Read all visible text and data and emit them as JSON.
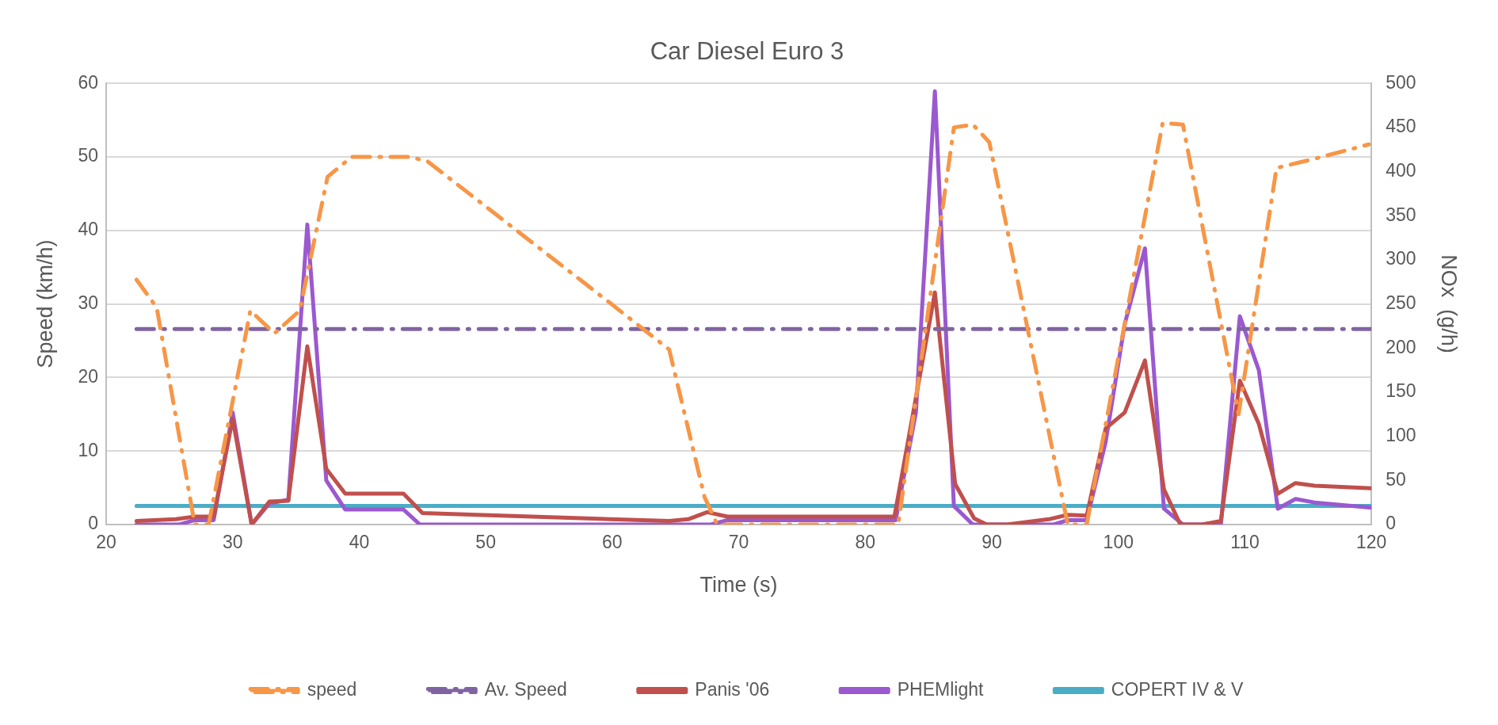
{
  "chart_data": {
    "type": "line",
    "title": "Car Diesel Euro 3",
    "xlabel": "Time (s)",
    "ylabel": "Speed (km/h)",
    "y2label": "NOx  (g/h)",
    "xlim": [
      20,
      120
    ],
    "xticks": [
      20,
      30,
      40,
      50,
      60,
      70,
      80,
      90,
      100,
      110,
      120
    ],
    "ylim": [
      0,
      60
    ],
    "yticks": [
      0,
      10,
      20,
      30,
      40,
      50,
      60
    ],
    "y2lim": [
      0,
      500
    ],
    "y2ticks": [
      0,
      50,
      100,
      150,
      200,
      250,
      300,
      350,
      400,
      450,
      500
    ],
    "grid": "y",
    "legend": "bottom",
    "marker": "none",
    "series": [
      {
        "name": "speed",
        "color": "#f79646",
        "line_style": "dashed",
        "x": [
          22.4,
          24.0,
          27.0,
          28.1,
          31.4,
          33.3,
          35.3,
          37.5,
          39.4,
          44.0,
          45.4,
          59.7,
          64.5,
          67.3,
          68.3,
          82.6,
          87.0,
          88.5,
          89.8,
          96.0,
          97.5,
          103.5,
          105.1,
          109.5,
          112.5,
          115.4,
          119.8
        ],
        "values": [
          33.3,
          29.5,
          0,
          0,
          29.1,
          26.0,
          29.1,
          47.3,
          50,
          50,
          49.4,
          30.3,
          23.8,
          3.7,
          0,
          0,
          54.0,
          54.4,
          52.0,
          0,
          0,
          54.6,
          54.4,
          15,
          48.5,
          49.7,
          51.7
        ]
      },
      {
        "name": "Av. Speed",
        "color": "#8064a2",
        "line_style": "dashed",
        "x": [
          22.4,
          120
        ],
        "values": [
          26.6,
          26.6
        ]
      },
      {
        "name": "Panis '06",
        "color": "#c0504d",
        "axis": "y2",
        "line_style": "solid",
        "x": [
          22.4,
          25.5,
          27.0,
          28.5,
          30.0,
          31.5,
          32.9,
          34.4,
          35.9,
          37.4,
          38.9,
          43.5,
          45.0,
          64.5,
          66.0,
          67.5,
          69.1,
          82.3,
          85.5,
          87.1,
          88.6,
          89.6,
          91.2,
          94.5,
          96.0,
          97.5,
          99.0,
          100.5,
          102.1,
          103.6,
          104.9,
          106.6,
          108.1,
          109.6,
          111.1,
          112.6,
          114.0,
          115.5,
          120
        ],
        "values": [
          4,
          6,
          9,
          9,
          120,
          0,
          26,
          27,
          202,
          63,
          35,
          35,
          13,
          4,
          6,
          14,
          9,
          9,
          263,
          46,
          7,
          0,
          0,
          6,
          11,
          10,
          109,
          127,
          186,
          40,
          0,
          0,
          4,
          163,
          114,
          35,
          47,
          44,
          41
        ]
      },
      {
        "name": "PHEMlight",
        "color": "#9b59d0",
        "axis": "y2",
        "line_style": "solid",
        "x": [
          22.4,
          25.8,
          27.0,
          28.5,
          30.0,
          31.5,
          32.9,
          34.4,
          35.9,
          37.4,
          38.9,
          43.5,
          44.8,
          67.8,
          69.1,
          82.4,
          84.0,
          85.5,
          87.0,
          88.5,
          94.9,
          96.0,
          97.5,
          99.0,
          100.5,
          102.1,
          103.6,
          105.1,
          108.1,
          109.6,
          111.1,
          112.6,
          114.0,
          115.5,
          120
        ],
        "values": [
          0,
          0,
          5,
          5,
          127,
          0,
          24,
          28,
          340,
          50,
          17,
          17,
          0,
          0,
          5,
          5,
          127,
          491,
          21,
          0,
          0,
          5,
          5,
          94,
          227,
          313,
          18,
          0,
          0,
          236,
          175,
          18,
          29,
          25,
          19
        ]
      },
      {
        "name": "COPERT IV & V",
        "color": "#4bacc6",
        "axis": "y2",
        "line_style": "solid",
        "x": [
          22.4,
          120
        ],
        "values": [
          21,
          21
        ]
      }
    ]
  }
}
